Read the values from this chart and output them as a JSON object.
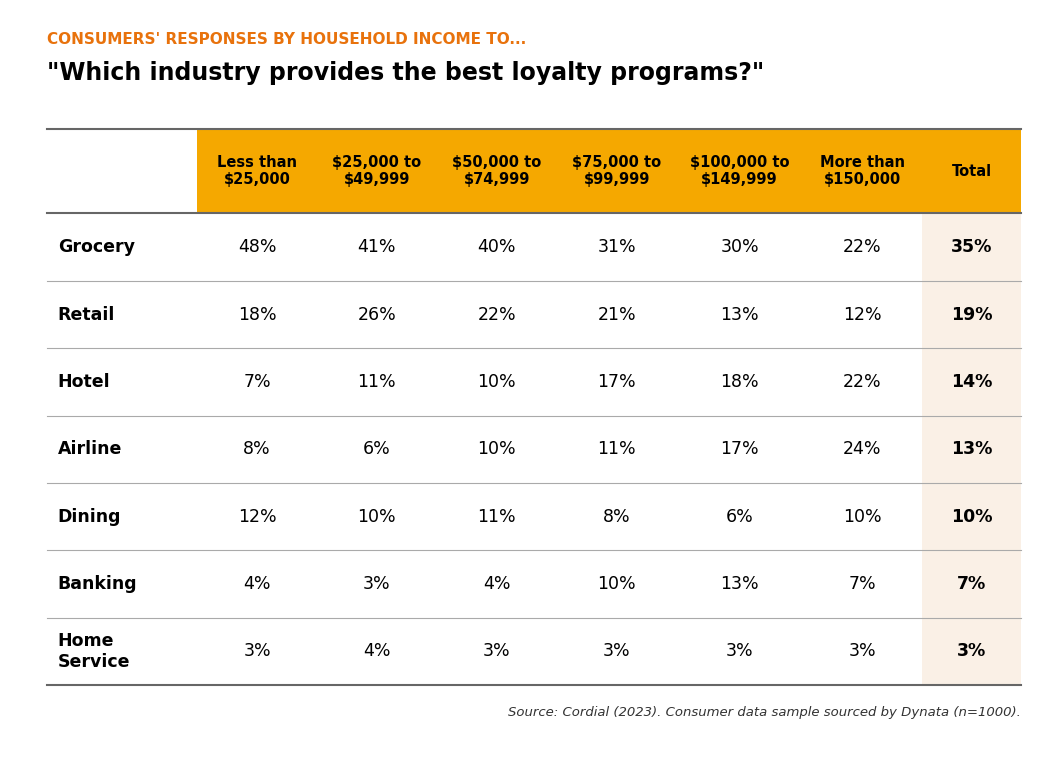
{
  "supertitle": "CONSUMERS' RESPONSES BY HOUSEHOLD INCOME TO...",
  "title": "\"Which industry provides the best loyalty programs?\"",
  "col_headers": [
    "Less than\n$25,000",
    "$25,000 to\n$49,999",
    "$50,000 to\n$74,999",
    "$75,000 to\n$99,999",
    "$100,000 to\n$149,999",
    "More than\n$150,000",
    "Total"
  ],
  "row_labels": [
    "Grocery",
    "Retail",
    "Hotel",
    "Airline",
    "Dining",
    "Banking",
    "Home\nService"
  ],
  "data": [
    [
      "48%",
      "41%",
      "40%",
      "31%",
      "30%",
      "22%",
      "35%"
    ],
    [
      "18%",
      "26%",
      "22%",
      "21%",
      "13%",
      "12%",
      "19%"
    ],
    [
      "7%",
      "11%",
      "10%",
      "17%",
      "18%",
      "22%",
      "14%"
    ],
    [
      "8%",
      "6%",
      "10%",
      "11%",
      "17%",
      "24%",
      "13%"
    ],
    [
      "12%",
      "10%",
      "11%",
      "8%",
      "6%",
      "10%",
      "10%"
    ],
    [
      "4%",
      "3%",
      "4%",
      "10%",
      "13%",
      "7%",
      "7%"
    ],
    [
      "3%",
      "4%",
      "3%",
      "3%",
      "3%",
      "3%",
      "3%"
    ]
  ],
  "header_bg_color": "#F5A800",
  "header_text_color": "#000000",
  "total_col_bg_color": "#FAF0E6",
  "supertitle_color": "#E8720C",
  "background_color": "#FFFFFF",
  "row_line_color": "#AAAAAA",
  "source_text": "Source: Cordial (2023). Consumer data sample sourced by Dynata (n=1000)."
}
